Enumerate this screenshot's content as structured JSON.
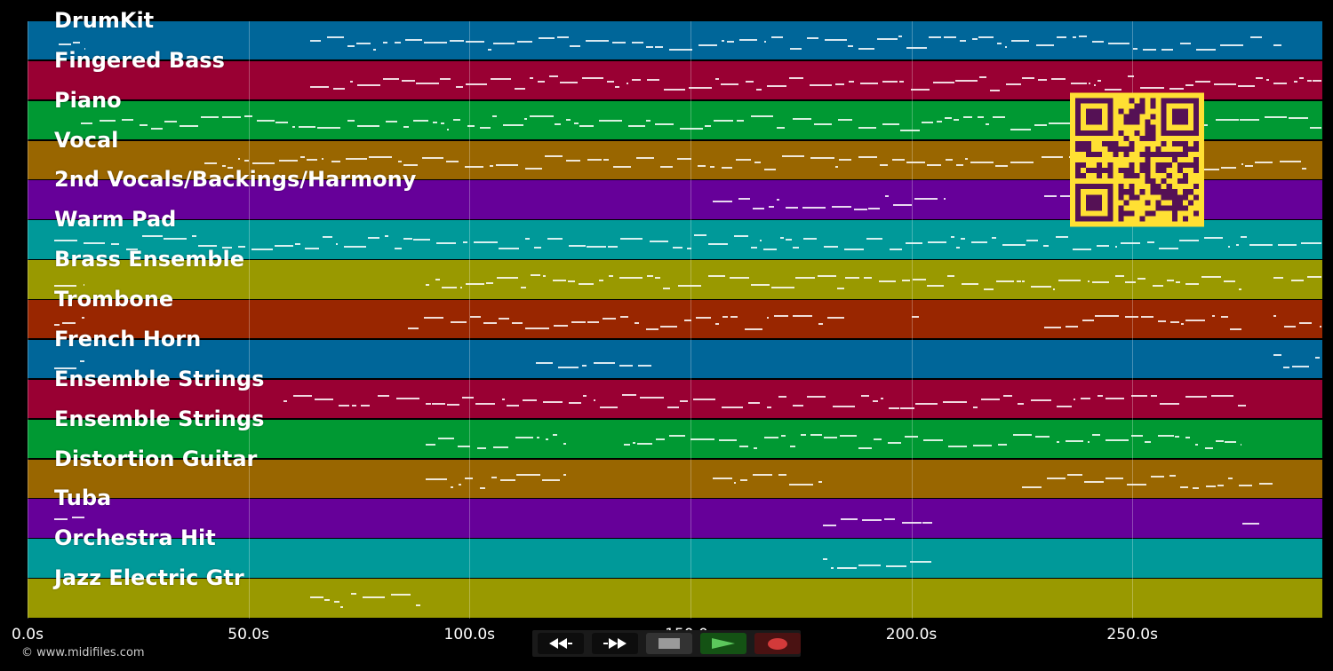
{
  "app": {
    "copyright": "© www.midifiles.com"
  },
  "timeline": {
    "duration_s": 293,
    "ticks": [
      {
        "value": 0,
        "label": "0.0s"
      },
      {
        "value": 50,
        "label": "50.0s"
      },
      {
        "value": 100,
        "label": "100.0s"
      },
      {
        "value": 150,
        "label": "150.0s"
      },
      {
        "value": 200,
        "label": "200.0s"
      },
      {
        "value": 250,
        "label": "250.0s"
      }
    ]
  },
  "tracks": [
    {
      "name": "DrumKit",
      "color": "#006699"
    },
    {
      "name": "Fingered Bass",
      "color": "#990033"
    },
    {
      "name": "Piano",
      "color": "#009933"
    },
    {
      "name": "Vocal",
      "color": "#996600"
    },
    {
      "name": "2nd Vocals/Backings/Harmony",
      "color": "#660099"
    },
    {
      "name": "Warm Pad",
      "color": "#009999"
    },
    {
      "name": "Brass Ensemble",
      "color": "#999900"
    },
    {
      "name": "Trombone",
      "color": "#992600"
    },
    {
      "name": "French Horn",
      "color": "#006699"
    },
    {
      "name": "Ensemble Strings",
      "color": "#990033"
    },
    {
      "name": "Ensemble Strings",
      "color": "#009933"
    },
    {
      "name": "Distortion Guitar",
      "color": "#996600"
    },
    {
      "name": "Tuba",
      "color": "#660099"
    },
    {
      "name": "Orchestra Hit",
      "color": "#009999"
    },
    {
      "name": "Jazz Electric Gtr",
      "color": "#999900"
    }
  ],
  "transport": {
    "rewind_icon": "rewind-icon",
    "forward_icon": "fast-forward-icon",
    "stop_icon": "stop-icon",
    "play_icon": "play-icon",
    "record_icon": "record-icon",
    "colors": {
      "play": "#5cc85c",
      "record": "#d23a3a",
      "stop": "#9a9a9a"
    }
  },
  "qr": {
    "icon": "qr-code-icon",
    "fg": "#551155",
    "bg": "#ffe033"
  }
}
